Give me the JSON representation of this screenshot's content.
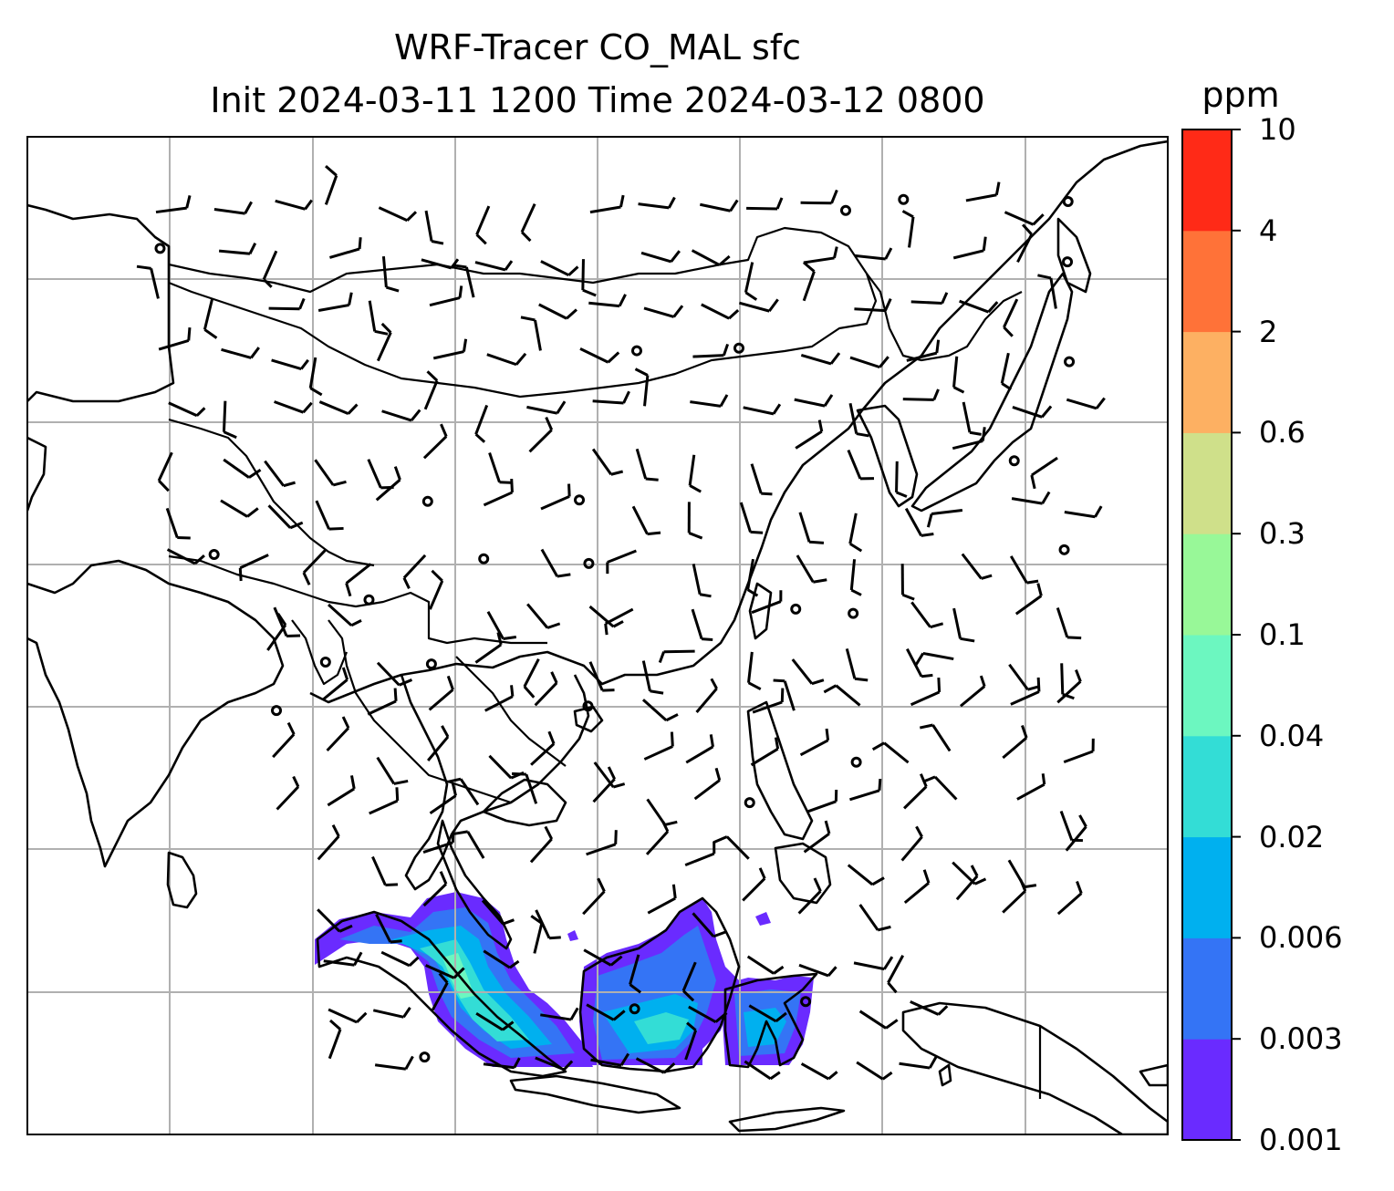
{
  "title": {
    "line1": "WRF-Tracer CO_MAL sfc",
    "line2": "Init 2024-03-11 1200 Time 2024-03-12 0800"
  },
  "colorbar": {
    "unit": "ppm",
    "levels": [
      "0.001",
      "0.003",
      "0.006",
      "0.02",
      "0.04",
      "0.1",
      "0.3",
      "0.6",
      "2",
      "4",
      "10"
    ],
    "colors": [
      "#6a2bff",
      "#3474f5",
      "#00b0ef",
      "#33ddd6",
      "#6cf7c0",
      "#98f898",
      "#cfe08a",
      "#fdb062",
      "#ff7238",
      "#ff2a17"
    ]
  },
  "map": {
    "variable": "CO_MAL",
    "level": "sfc",
    "gridlines": true,
    "coastlines": true,
    "country_borders": true,
    "wind_barbs": true,
    "plume_region": "Sumatra, Malay Peninsula and Borneo"
  }
}
